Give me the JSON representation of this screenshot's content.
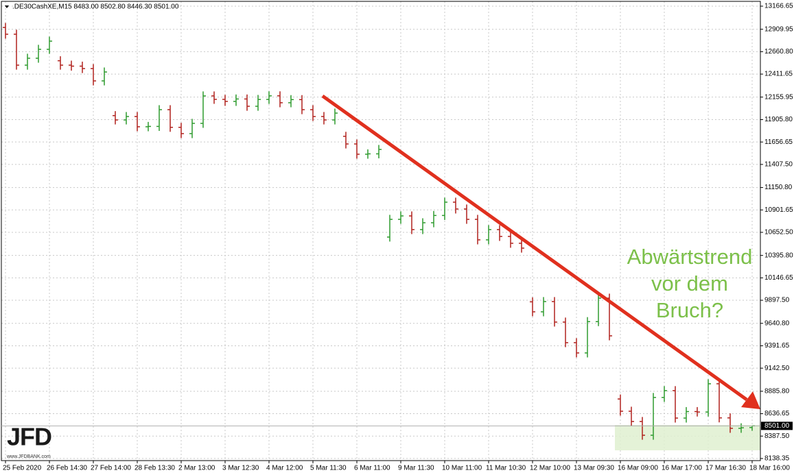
{
  "chart_data": {
    "type": "ohlc",
    "header": ".DE30CashXE,M15  8483.00 8502.80 8446.30 8501.00",
    "categories": [
      "25 Feb 2020",
      null,
      null,
      null,
      "26 Feb 14:30",
      null,
      null,
      null,
      "27 Feb 14:00",
      null,
      null,
      null,
      "28 Feb 13:30",
      null,
      null,
      null,
      "2 Mar 13:00",
      null,
      null,
      null,
      "3 Mar 12:30",
      null,
      null,
      null,
      "4 Mar 12:00",
      null,
      null,
      null,
      "5 Mar 11:30",
      null,
      null,
      null,
      "6 Mar 11:00",
      null,
      null,
      null,
      "9 Mar 11:30",
      null,
      null,
      null,
      "10 Mar 11:00",
      null,
      null,
      null,
      "11 Mar 10:30",
      null,
      null,
      null,
      "12 Mar 10:00",
      null,
      null,
      null,
      "13 Mar 09:30",
      null,
      null,
      null,
      "16 Mar 09:00",
      null,
      null,
      null,
      "16 Mar 17:00",
      null,
      null,
      null,
      "17 Mar 16:30",
      null,
      null,
      null,
      "18 Mar 16:00"
    ],
    "open": [
      12930,
      12855,
      12511,
      12588,
      12687,
      12560,
      12511,
      12500,
      12473,
      12336,
      11950,
      11902,
      11940,
      11826,
      11830,
      12016,
      11820,
      11750,
      11864,
      12169,
      12131,
      12108,
      12135,
      12054,
      12130,
      12170,
      12093,
      12128,
      12016,
      11940,
      11902,
      11720,
      11635,
      11521,
      11525,
      10600,
      10797,
      10835,
      10683,
      10759,
      10840,
      10988,
      10912,
      10797,
      10569,
      10683,
      10607,
      10531,
      9880,
      9769,
      9883,
      9655,
      9426,
      9312,
      9660,
      9921,
      8800,
      8664,
      8550,
      8397,
      8817,
      8893,
      8588,
      8660,
      8655,
      8969,
      8590,
      8474,
      8483
    ],
    "high": [
      12980,
      12905,
      12638,
      12737,
      12828,
      12610,
      12561,
      12550,
      12523,
      12485,
      12000,
      11990,
      11990,
      11880,
      12066,
      12066,
      11870,
      11914,
      12219,
      12219,
      12181,
      12185,
      12185,
      12180,
      12220,
      12220,
      12178,
      12178,
      12066,
      11990,
      12028,
      11770,
      11685,
      11575,
      11624,
      10847,
      10885,
      10885,
      10809,
      10890,
      11038,
      11038,
      10962,
      10847,
      10733,
      10733,
      10657,
      10581,
      9930,
      9933,
      9933,
      9705,
      9476,
      9710,
      9971,
      9971,
      8850,
      8714,
      8600,
      8867,
      8943,
      8943,
      8710,
      8710,
      9019,
      9019,
      8640,
      8530,
      8502.8
    ],
    "low": [
      12805,
      12461,
      12461,
      12538,
      12637,
      12461,
      12450,
      12423,
      12286,
      12286,
      11852,
      11852,
      11776,
      11776,
      11780,
      11770,
      11700,
      11700,
      11814,
      12081,
      12058,
      12058,
      12004,
      12004,
      12080,
      12043,
      12043,
      11966,
      11890,
      11852,
      11852,
      11585,
      11471,
      11471,
      11475,
      10550,
      10747,
      10633,
      10633,
      10709,
      10790,
      10862,
      10747,
      10519,
      10519,
      10557,
      10481,
      10427,
      9719,
      9719,
      9605,
      9376,
      9262,
      9262,
      9610,
      9452,
      8614,
      8500,
      8347,
      8347,
      8767,
      8538,
      8538,
      8605,
      8605,
      8540,
      8424,
      8424,
      8446.3
    ],
    "close": [
      12855,
      12511,
      12588,
      12687,
      12778,
      12511,
      12500,
      12473,
      12336,
      12435,
      11902,
      11940,
      11826,
      11830,
      12016,
      11820,
      11750,
      11864,
      12169,
      12131,
      12108,
      12135,
      12054,
      12130,
      12170,
      12093,
      12128,
      12016,
      11940,
      11902,
      11978,
      11635,
      11521,
      11525,
      11574,
      10797,
      10835,
      10683,
      10759,
      10840,
      10988,
      10912,
      10797,
      10569,
      10683,
      10607,
      10531,
      10477,
      9769,
      9883,
      9655,
      9426,
      9312,
      9660,
      9921,
      9502,
      8664,
      8550,
      8397,
      8817,
      8893,
      8588,
      8660,
      8655,
      8969,
      8590,
      8474,
      8480,
      8501
    ],
    "up_color": "#2e9a2e",
    "down_color": "#b0211c",
    "ylim": [
      8115,
      13220
    ],
    "yticks": [
      13166.65,
      12909.95,
      {
        "value": 12660.8,
        "label": "12660.80"
      },
      12411.65,
      12155.95,
      {
        "value": 11905.8,
        "label": "11905.80"
      },
      11656.65,
      {
        "value": 11407.5,
        "label": "11407.50"
      },
      {
        "value": 11150.8,
        "label": "11150.80"
      },
      10901.65,
      {
        "value": 10652.5,
        "label": "10652.50"
      },
      {
        "value": 10395.8,
        "label": "10395.80"
      },
      10146.65,
      {
        "value": 9897.5,
        "label": "9897.50"
      },
      {
        "value": 9640.8,
        "label": "9640.80"
      },
      9391.65,
      {
        "value": 9142.5,
        "label": "9142.50"
      },
      {
        "value": 8885.8,
        "label": "8885.80"
      },
      8636.65,
      {
        "value": 8387.5,
        "label": "8387.50"
      },
      8138.35
    ],
    "last_price": {
      "value": 8501,
      "label": "8501.00"
    },
    "grid": true,
    "annotation": [
      "Abwärtstrend",
      "vor dem",
      "Bruch?"
    ],
    "logo": {
      "text": "JFD",
      "url": "www.JFDBANK.com"
    }
  }
}
